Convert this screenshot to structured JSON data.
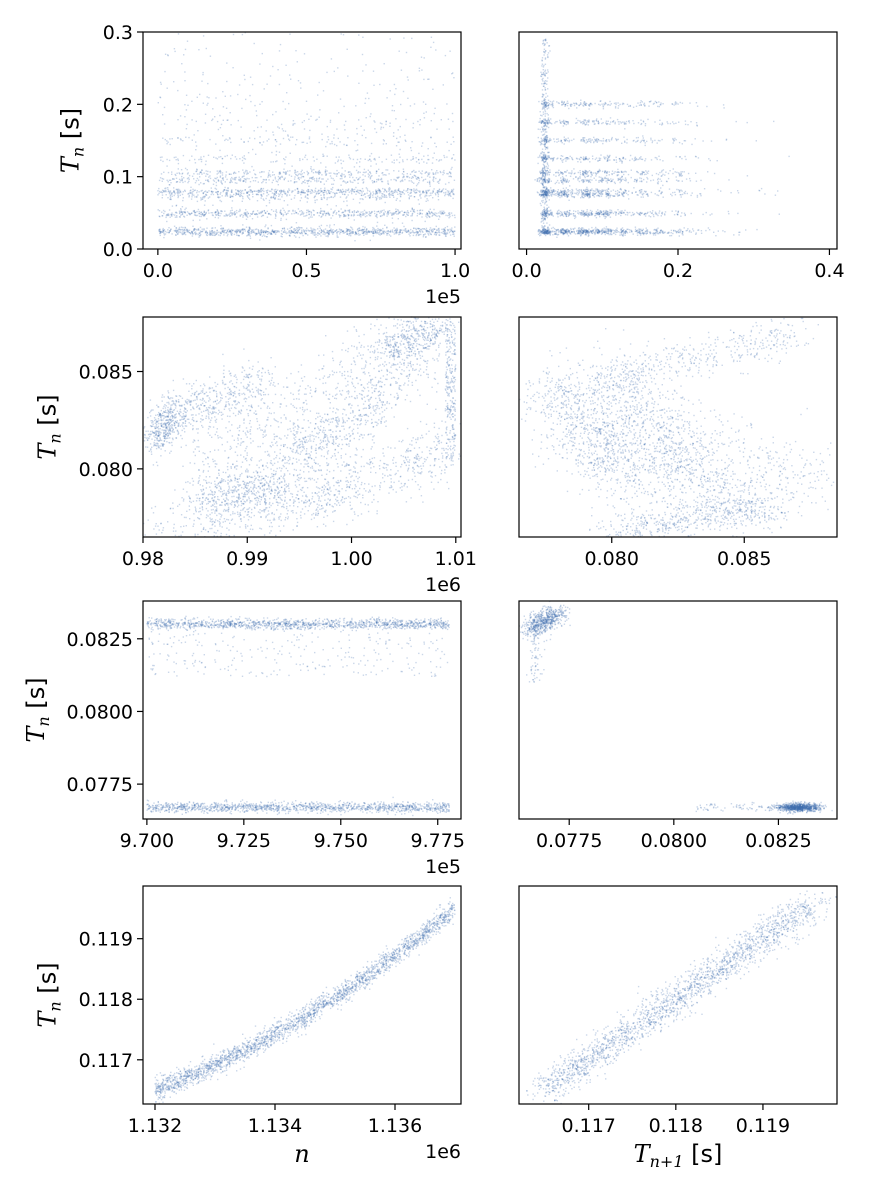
{
  "figure": {
    "point_color": "#3f6fb0",
    "ylabel_main": "T",
    "ylabel_sub": "n",
    "ylabel_unit": " [s]",
    "xlabel_left": "n",
    "xlabel_right_main": "T",
    "xlabel_right_sub": "n+1",
    "xlabel_right_unit": " [s]"
  },
  "chart_data": [
    {
      "id": "r1-left",
      "type": "scatter",
      "xlabel": "",
      "ylabel": "T_n [s]",
      "xlim": [
        -0.05,
        1.02
      ],
      "ylim": [
        0.0,
        0.3
      ],
      "xticks": [
        0.0,
        0.5,
        1.0
      ],
      "xtick_labels": [
        "0.0",
        "0.5",
        "1.0"
      ],
      "yticks": [
        0.0,
        0.1,
        0.2,
        0.3
      ],
      "ytick_labels": [
        "0.0",
        "0.1",
        "0.2",
        "0.3"
      ],
      "offset_label": "1e5",
      "grid": false,
      "bands": [
        {
          "y": 0.024,
          "width": 0.003,
          "density": 1.0
        },
        {
          "y": 0.049,
          "width": 0.003,
          "density": 0.6
        },
        {
          "y": 0.075,
          "width": 0.004,
          "density": 0.45
        },
        {
          "y": 0.08,
          "width": 0.002,
          "density": 0.35
        },
        {
          "y": 0.095,
          "width": 0.003,
          "density": 0.3
        },
        {
          "y": 0.105,
          "width": 0.003,
          "density": 0.3
        },
        {
          "y": 0.125,
          "width": 0.004,
          "density": 0.15
        },
        {
          "y": 0.15,
          "width": 0.004,
          "density": 0.1
        },
        {
          "y": 0.175,
          "width": 0.006,
          "density": 0.06
        },
        {
          "y": 0.2,
          "width": 0.008,
          "density": 0.04
        }
      ]
    },
    {
      "id": "r1-right",
      "type": "scatter",
      "xlabel": "",
      "ylabel": "",
      "xlim": [
        -0.01,
        0.41
      ],
      "ylim": [
        0.0,
        0.3
      ],
      "xticks": [
        0.0,
        0.2,
        0.4
      ],
      "xtick_labels": [
        "0.0",
        "0.2",
        "0.4"
      ],
      "yticks": [],
      "ytick_labels": [],
      "offset_label": "",
      "grid": false,
      "levels": [
        0.024,
        0.049,
        0.075,
        0.08,
        0.095,
        0.105,
        0.125,
        0.15,
        0.175,
        0.2
      ]
    },
    {
      "id": "r2-left",
      "type": "scatter",
      "xlabel": "",
      "ylabel": "T_n [s]",
      "xlim": [
        0.98,
        1.0105
      ],
      "ylim": [
        0.0765,
        0.0878
      ],
      "xticks": [
        0.98,
        0.99,
        1.0,
        1.01
      ],
      "xtick_labels": [
        "0.98",
        "0.99",
        "1.00",
        "1.01"
      ],
      "yticks": [
        0.08,
        0.085
      ],
      "ytick_labels": [
        "0.080",
        "0.085"
      ],
      "offset_label": "1e6",
      "grid": false
    },
    {
      "id": "r2-right",
      "type": "scatter",
      "xlabel": "",
      "ylabel": "",
      "xlim": [
        0.0765,
        0.0885
      ],
      "ylim": [
        0.0765,
        0.0878
      ],
      "xticks": [
        0.08,
        0.085
      ],
      "xtick_labels": [
        "0.080",
        "0.085"
      ],
      "yticks": [],
      "ytick_labels": [],
      "offset_label": "",
      "grid": false
    },
    {
      "id": "r3-left",
      "type": "scatter",
      "xlabel": "",
      "ylabel": "T_n [s]",
      "xlim": [
        9.699,
        9.781
      ],
      "ylim": [
        0.0763,
        0.0838
      ],
      "xticks": [
        9.7,
        9.725,
        9.75,
        9.775
      ],
      "xtick_labels": [
        "9.700",
        "9.725",
        "9.750",
        "9.775"
      ],
      "yticks": [
        0.0775,
        0.08,
        0.0825
      ],
      "ytick_labels": [
        "0.0775",
        "0.0800",
        "0.0825"
      ],
      "offset_label": "1e5",
      "grid": false,
      "levels": [
        0.0767,
        0.083
      ]
    },
    {
      "id": "r3-right",
      "type": "scatter",
      "xlabel": "",
      "ylabel": "",
      "xlim": [
        0.0763,
        0.0839
      ],
      "ylim": [
        0.0763,
        0.0838
      ],
      "xticks": [
        0.0775,
        0.08,
        0.0825
      ],
      "xtick_labels": [
        "0.0775",
        "0.0800",
        "0.0825"
      ],
      "yticks": [],
      "ytick_labels": [],
      "offset_label": "",
      "grid": false,
      "clusters": [
        {
          "x": 0.0767,
          "y": 0.083
        },
        {
          "x": 0.083,
          "y": 0.0767
        }
      ]
    },
    {
      "id": "r4-left",
      "type": "scatter",
      "xlabel": "n",
      "ylabel": "T_n [s]",
      "xlim": [
        1.1318,
        1.1371
      ],
      "ylim": [
        0.11627,
        0.11987
      ],
      "xticks": [
        1.132,
        1.134,
        1.136
      ],
      "xtick_labels": [
        "1.132",
        "1.134",
        "1.136"
      ],
      "yticks": [
        0.117,
        0.118,
        0.119
      ],
      "ytick_labels": [
        "0.117",
        "0.118",
        "0.119"
      ],
      "offset_label": "1e6",
      "grid": false,
      "curve": {
        "x_start": 1.132,
        "x_end": 1.137,
        "y_start": 0.1165,
        "y_end": 0.1195
      }
    },
    {
      "id": "r4-right",
      "type": "scatter",
      "xlabel": "T_{n+1} [s]",
      "ylabel": "",
      "xlim": [
        0.1162,
        0.11985
      ],
      "ylim": [
        0.11627,
        0.11987
      ],
      "xticks": [
        0.117,
        0.118,
        0.119
      ],
      "xtick_labels": [
        "0.117",
        "0.118",
        "0.119"
      ],
      "yticks": [],
      "ytick_labels": [],
      "offset_label": "",
      "grid": false,
      "diagonal": {
        "start": 0.1165,
        "end": 0.1196
      }
    }
  ]
}
